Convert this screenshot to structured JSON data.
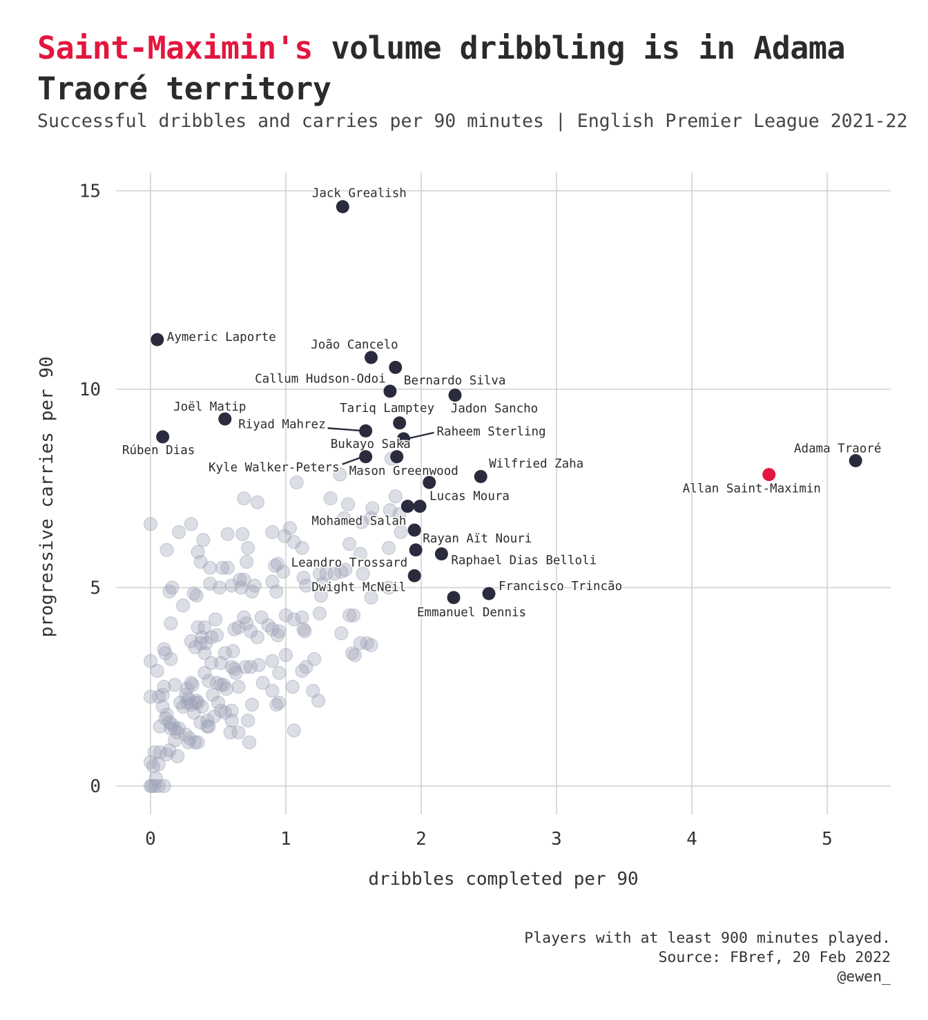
{
  "title": {
    "highlight": "Saint-Maximin's",
    "rest": " volume dribbling is in Adama Traoré territory"
  },
  "subtitle": "Successful dribbles and carries per 90 minutes | English Premier League 2021-22",
  "caption": {
    "line1": "Players with at least 900 minutes played.",
    "line2": "Source: FBref, 20 Feb 2022",
    "line3": "@ewen_"
  },
  "colors": {
    "highlight": "#e3173e",
    "labeled": "#2a2b3d",
    "background_points": "#9aa0b4",
    "grid": "#d0d0d0"
  },
  "chart_data": {
    "type": "scatter",
    "xlabel": "dribbles completed per 90",
    "ylabel": "progressive carries per 90",
    "xlim": [
      -0.25,
      5.5
    ],
    "ylim": [
      -0.7,
      15.3
    ],
    "xticks": [
      0,
      1,
      2,
      3,
      4,
      5
    ],
    "yticks": [
      0,
      5,
      10,
      15
    ],
    "grid": true,
    "highlighted": [
      {
        "name": "Allan Saint-Maximin",
        "x": 4.57,
        "y": 7.85
      }
    ],
    "labeled": [
      {
        "name": "Jack Grealish",
        "x": 1.42,
        "y": 14.6
      },
      {
        "name": "Aymeric Laporte",
        "x": 0.05,
        "y": 11.25
      },
      {
        "name": "João Cancelo",
        "x": 1.63,
        "y": 10.8
      },
      {
        "name": "Callum Hudson-Odoi",
        "x": 1.81,
        "y": 10.55
      },
      {
        "name": "Bernardo Silva",
        "x": 1.77,
        "y": 9.95
      },
      {
        "name": "Jadon Sancho",
        "x": 2.25,
        "y": 9.85
      },
      {
        "name": "Joël Matip",
        "x": 0.55,
        "y": 9.25
      },
      {
        "name": "Tariq Lamptey",
        "x": 1.84,
        "y": 9.15
      },
      {
        "name": "Riyad Mahrez",
        "x": 1.59,
        "y": 8.95
      },
      {
        "name": "Raheem Sterling",
        "x": 1.87,
        "y": 8.75
      },
      {
        "name": "Rúben Dias",
        "x": 0.09,
        "y": 8.8
      },
      {
        "name": "Bukayo Saka",
        "x": 1.82,
        "y": 8.3
      },
      {
        "name": "Kyle Walker-Peters",
        "x": 1.59,
        "y": 8.3
      },
      {
        "name": "Mason Greenwood",
        "x": 2.06,
        "y": 7.65
      },
      {
        "name": "Wilfried Zaha",
        "x": 2.44,
        "y": 7.8
      },
      {
        "name": "Adama Traoré",
        "x": 5.21,
        "y": 8.2
      },
      {
        "name": "Lucas Moura",
        "x": 1.99,
        "y": 7.05
      },
      {
        "name": "Mohamed Salah",
        "x": 1.9,
        "y": 7.05
      },
      {
        "name": "Rayan Aït Nouri",
        "x": 1.95,
        "y": 6.45
      },
      {
        "name": "Raphael Dias Belloli",
        "x": 2.15,
        "y": 5.85
      },
      {
        "name": "Leandro Trossard",
        "x": 1.96,
        "y": 5.95
      },
      {
        "name": "Dwight McNeil",
        "x": 1.95,
        "y": 5.3
      },
      {
        "name": "Francisco Trincão",
        "x": 2.5,
        "y": 4.85
      },
      {
        "name": "Emmanuel Dennis",
        "x": 2.24,
        "y": 4.75
      }
    ],
    "others": [
      [
        0.0,
        6.6
      ],
      [
        0.12,
        5.95
      ],
      [
        0.21,
        6.4
      ],
      [
        0.3,
        6.6
      ],
      [
        0.39,
        6.2
      ],
      [
        0.35,
        5.9
      ],
      [
        0.37,
        5.65
      ],
      [
        0.44,
        5.5
      ],
      [
        0.57,
        6.35
      ],
      [
        0.68,
        6.35
      ],
      [
        0.71,
        5.65
      ],
      [
        0.72,
        6.0
      ],
      [
        0.69,
        7.25
      ],
      [
        0.79,
        7.15
      ],
      [
        0.9,
        6.4
      ],
      [
        0.99,
        6.3
      ],
      [
        1.03,
        6.5
      ],
      [
        1.06,
        6.15
      ],
      [
        1.12,
        6.0
      ],
      [
        1.08,
        7.65
      ],
      [
        1.33,
        7.25
      ],
      [
        1.4,
        7.85
      ],
      [
        1.46,
        7.1
      ],
      [
        1.64,
        7.0
      ],
      [
        1.78,
        8.25
      ],
      [
        1.81,
        7.3
      ],
      [
        1.77,
        6.95
      ],
      [
        1.84,
        6.85
      ],
      [
        1.85,
        6.4
      ],
      [
        1.43,
        6.75
      ],
      [
        1.56,
        6.65
      ],
      [
        1.63,
        6.75
      ],
      [
        1.76,
        6.0
      ],
      [
        1.47,
        6.1
      ],
      [
        1.55,
        5.85
      ],
      [
        1.3,
        5.35
      ],
      [
        1.36,
        5.35
      ],
      [
        1.41,
        5.4
      ],
      [
        1.44,
        5.45
      ],
      [
        1.57,
        5.35
      ],
      [
        1.25,
        5.35
      ],
      [
        1.27,
        5.1
      ],
      [
        1.13,
        5.25
      ],
      [
        1.15,
        5.05
      ],
      [
        1.26,
        4.8
      ],
      [
        1.63,
        4.75
      ],
      [
        1.76,
        5.0
      ],
      [
        0.92,
        5.55
      ],
      [
        0.94,
        5.6
      ],
      [
        0.98,
        5.4
      ],
      [
        0.93,
        4.9
      ],
      [
        0.9,
        5.15
      ],
      [
        0.77,
        5.05
      ],
      [
        0.75,
        4.9
      ],
      [
        0.69,
        5.2
      ],
      [
        0.67,
        5.0
      ],
      [
        0.66,
        5.2
      ],
      [
        0.6,
        5.05
      ],
      [
        0.57,
        5.5
      ],
      [
        0.53,
        5.5
      ],
      [
        0.51,
        5.0
      ],
      [
        0.44,
        5.1
      ],
      [
        0.32,
        4.85
      ],
      [
        0.34,
        4.8
      ],
      [
        0.14,
        4.9
      ],
      [
        0.16,
        5.0
      ],
      [
        0.24,
        4.55
      ],
      [
        0.15,
        4.1
      ],
      [
        0.35,
        4.0
      ],
      [
        0.4,
        4.0
      ],
      [
        0.38,
        3.75
      ],
      [
        0.48,
        4.2
      ],
      [
        0.49,
        3.8
      ],
      [
        0.62,
        3.95
      ],
      [
        0.65,
        4.0
      ],
      [
        0.69,
        4.25
      ],
      [
        0.71,
        4.1
      ],
      [
        0.74,
        3.9
      ],
      [
        0.79,
        3.75
      ],
      [
        0.82,
        4.25
      ],
      [
        0.87,
        4.05
      ],
      [
        0.9,
        3.95
      ],
      [
        0.94,
        3.8
      ],
      [
        0.95,
        3.9
      ],
      [
        1.0,
        4.3
      ],
      [
        1.06,
        4.2
      ],
      [
        1.12,
        4.25
      ],
      [
        1.13,
        3.95
      ],
      [
        1.14,
        3.9
      ],
      [
        1.25,
        4.35
      ],
      [
        1.47,
        4.3
      ],
      [
        1.5,
        4.3
      ],
      [
        1.41,
        3.85
      ],
      [
        1.55,
        3.6
      ],
      [
        1.6,
        3.6
      ],
      [
        1.63,
        3.55
      ],
      [
        1.49,
        3.35
      ],
      [
        1.51,
        3.3
      ],
      [
        1.0,
        3.3
      ],
      [
        1.21,
        3.2
      ],
      [
        1.15,
        3.0
      ],
      [
        1.12,
        2.9
      ],
      [
        0.9,
        3.15
      ],
      [
        0.8,
        3.05
      ],
      [
        0.74,
        3.0
      ],
      [
        0.7,
        3.0
      ],
      [
        0.62,
        2.95
      ],
      [
        0.6,
        3.0
      ],
      [
        0.63,
        2.85
      ],
      [
        0.52,
        3.1
      ],
      [
        0.45,
        3.1
      ],
      [
        0.4,
        2.85
      ],
      [
        0.43,
        2.65
      ],
      [
        0.49,
        2.6
      ],
      [
        0.52,
        2.55
      ],
      [
        0.54,
        2.55
      ],
      [
        0.56,
        2.45
      ],
      [
        0.65,
        2.5
      ],
      [
        0.83,
        2.6
      ],
      [
        0.9,
        2.4
      ],
      [
        0.95,
        2.85
      ],
      [
        1.05,
        2.5
      ],
      [
        1.2,
        2.4
      ],
      [
        1.24,
        2.15
      ],
      [
        0.95,
        2.1
      ],
      [
        0.75,
        2.05
      ],
      [
        0.72,
        1.65
      ],
      [
        0.6,
        1.65
      ],
      [
        0.65,
        1.35
      ],
      [
        0.59,
        1.35
      ],
      [
        0.73,
        1.1
      ],
      [
        0.55,
        1.85
      ],
      [
        0.52,
        1.9
      ],
      [
        0.47,
        1.75
      ],
      [
        0.42,
        1.5
      ],
      [
        0.42,
        1.65
      ],
      [
        0.37,
        1.6
      ],
      [
        0.32,
        1.85
      ],
      [
        0.33,
        2.1
      ],
      [
        0.3,
        2.05
      ],
      [
        0.27,
        2.1
      ],
      [
        0.24,
        2.0
      ],
      [
        0.22,
        2.1
      ],
      [
        0.28,
        2.2
      ],
      [
        0.31,
        2.55
      ],
      [
        0.27,
        2.45
      ],
      [
        0.18,
        2.55
      ],
      [
        0.1,
        2.5
      ],
      [
        0.09,
        2.3
      ],
      [
        0.09,
        2.0
      ],
      [
        0.12,
        1.8
      ],
      [
        0.14,
        1.6
      ],
      [
        0.16,
        1.55
      ],
      [
        0.18,
        1.45
      ],
      [
        0.15,
        1.45
      ],
      [
        0.07,
        1.5
      ],
      [
        0.11,
        1.7
      ],
      [
        0.2,
        1.35
      ],
      [
        0.21,
        1.45
      ],
      [
        0.26,
        1.3
      ],
      [
        0.29,
        1.2
      ],
      [
        0.33,
        1.1
      ],
      [
        0.35,
        1.1
      ],
      [
        0.28,
        1.1
      ],
      [
        0.18,
        1.15
      ],
      [
        0.14,
        0.9
      ],
      [
        0.12,
        0.8
      ],
      [
        0.2,
        0.75
      ],
      [
        0.07,
        0.85
      ],
      [
        0.03,
        0.85
      ],
      [
        0.06,
        0.55
      ],
      [
        0.02,
        0.5
      ],
      [
        0.0,
        0.6
      ],
      [
        0.04,
        0.2
      ],
      [
        0.0,
        0.0
      ],
      [
        0.01,
        0.0
      ],
      [
        0.03,
        0.0
      ],
      [
        0.06,
        0.0
      ],
      [
        0.1,
        0.0
      ],
      [
        0.0,
        2.25
      ],
      [
        0.06,
        2.25
      ],
      [
        0.0,
        3.15
      ],
      [
        0.05,
        2.9
      ],
      [
        0.11,
        3.35
      ],
      [
        0.1,
        3.45
      ],
      [
        0.15,
        3.2
      ],
      [
        0.3,
        3.65
      ],
      [
        0.33,
        3.5
      ],
      [
        0.37,
        3.6
      ],
      [
        0.41,
        3.6
      ],
      [
        0.4,
        3.35
      ],
      [
        0.45,
        3.75
      ],
      [
        0.55,
        3.35
      ],
      [
        0.61,
        3.4
      ],
      [
        0.3,
        2.6
      ],
      [
        0.26,
        2.3
      ],
      [
        0.34,
        2.15
      ],
      [
        0.35,
        2.1
      ],
      [
        0.38,
        2.0
      ],
      [
        0.46,
        2.3
      ],
      [
        0.5,
        2.1
      ],
      [
        0.6,
        1.9
      ],
      [
        0.93,
        2.05
      ],
      [
        1.06,
        1.4
      ],
      [
        0.43,
        1.5
      ]
    ]
  }
}
